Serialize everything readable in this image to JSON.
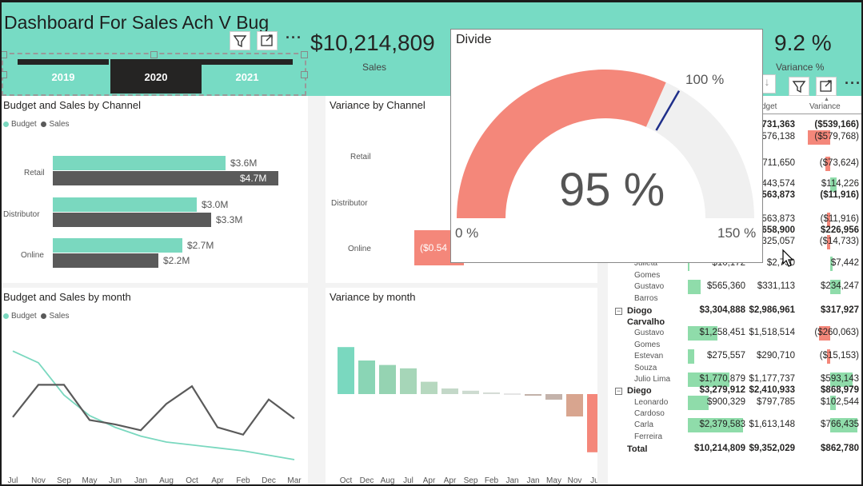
{
  "header": {
    "title": "Dashboard For Sales Ach V Bug",
    "kpi_sales_value": "$10,214,809",
    "kpi_sales_label": "Sales",
    "kpi_variance_value": "9.2 %",
    "kpi_variance_label": "Variance %",
    "more_label": "···",
    "colors": {
      "header_bg": "#77dbc4",
      "budget": "#7ad8bf",
      "sales": "#5a5a5a",
      "negative": "#f4877a",
      "positive": "#7fd49a"
    }
  },
  "slicer": {
    "years": [
      {
        "label": "2019",
        "selected": false
      },
      {
        "label": "2020",
        "selected": true
      },
      {
        "label": "2021",
        "selected": false
      }
    ]
  },
  "budget_sales_channel": {
    "title": "Budget and Sales by Channel",
    "legend": [
      "Budget",
      "Sales"
    ],
    "chart_data": {
      "type": "bar",
      "orientation": "horizontal",
      "categories": [
        "Retail",
        "Distributor",
        "Online"
      ],
      "series": [
        {
          "name": "Budget",
          "values": [
            3.6,
            3.0,
            2.7
          ]
        },
        {
          "name": "Sales",
          "values": [
            4.7,
            3.3,
            2.2
          ]
        }
      ],
      "labels": {
        "Budget": [
          "$3.6M",
          "$3.0M",
          "$2.7M"
        ],
        "Sales": [
          "$4.7M",
          "$3.3M",
          "$2.2M"
        ]
      },
      "xlim": [
        0,
        5.0
      ]
    }
  },
  "variance_channel": {
    "title": "Variance by Channel",
    "chart_data": {
      "type": "bar",
      "orientation": "horizontal",
      "categories": [
        "Retail",
        "Distributor",
        "Online"
      ],
      "visible_labels": [
        "",
        "",
        "($0.54"
      ]
    }
  },
  "budget_sales_month": {
    "title": "Budget and Sales by month",
    "legend": [
      "Budget",
      "Sales"
    ],
    "chart_data": {
      "type": "line",
      "x": [
        "Jul",
        "Nov",
        "Sep",
        "May",
        "Jun",
        "Jan",
        "Aug",
        "Oct",
        "Apr",
        "Feb",
        "Dec",
        "Mar"
      ],
      "series": [
        {
          "name": "Budget",
          "values": [
            1000,
            920,
            700,
            560,
            480,
            420,
            380,
            360,
            340,
            320,
            290,
            260
          ]
        },
        {
          "name": "Sales",
          "values": [
            550,
            770,
            770,
            530,
            500,
            460,
            640,
            760,
            480,
            430,
            670,
            540
          ]
        }
      ],
      "ylim": [
        200,
        1050
      ]
    }
  },
  "variance_month": {
    "title": "Variance by month",
    "chart_data": {
      "type": "bar",
      "categories": [
        "Oct",
        "Dec",
        "Aug",
        "Jul",
        "Apr",
        "Apr",
        "Sep",
        "Feb",
        "Jan",
        "Jan",
        "May",
        "Nov",
        "Jul"
      ],
      "values": [
        420,
        300,
        260,
        230,
        110,
        50,
        30,
        15,
        5,
        -15,
        -50,
        -200,
        -520
      ],
      "ylim": [
        -550,
        450
      ]
    }
  },
  "gauge": {
    "title": "Divide",
    "value_label": "95 %",
    "min_label": "0 %",
    "max_label": "150 %",
    "target_label": "100 %",
    "value": 95,
    "min": 0,
    "max": 150,
    "target": 100
  },
  "matrix": {
    "headers": [
      "dget",
      "Variance"
    ],
    "rows": [
      {
        "name": "",
        "budget": ",731,363",
        "variance": "($539,166)",
        "bold": true
      },
      {
        "name": "",
        "budget": ",576,138",
        "variance": "($579,768)",
        "bold": false
      },
      {
        "name": "",
        "budget": "$711,650",
        "variance": "($73,624)",
        "bold": false
      },
      {
        "name": "",
        "budget": "$443,574",
        "variance": "$114,226",
        "bold": false
      },
      {
        "name": "",
        "budget": "$563,873",
        "variance": "($11,916)",
        "bold": true
      },
      {
        "name": "",
        "budget": "$563,873",
        "variance": "($11,916)",
        "bold": false
      },
      {
        "name": "",
        "budget": "$658,900",
        "variance": "$226,956",
        "bold": true
      },
      {
        "name": "",
        "budget": "325,057",
        "variance": "($14,733)",
        "bold": false
      },
      {
        "name": "Julieta",
        "sales": "$10,172",
        "budget": "$2,730",
        "variance": "$7,442",
        "bold": false
      },
      {
        "name": "Gomes",
        "sales": "",
        "budget": "",
        "variance": "",
        "bold": false
      },
      {
        "name": "Gustavo",
        "sales": "$565,360",
        "budget": "$331,113",
        "variance": "$234,247",
        "bold": false
      },
      {
        "name": "Barros",
        "sales": "",
        "budget": "",
        "variance": "",
        "bold": false
      },
      {
        "name": "Diogo",
        "sales": "$3,304,888",
        "budget": "$2,986,961",
        "variance": "$317,927",
        "bold": true,
        "expander": "⊟"
      },
      {
        "name": "Carvalho",
        "sales": "",
        "budget": "",
        "variance": "",
        "bold": true
      },
      {
        "name": "Gustavo",
        "sales": "$1,258,451",
        "budget": "$1,518,514",
        "variance": "($260,063)",
        "bold": false
      },
      {
        "name": "Gomes",
        "sales": "",
        "budget": "",
        "variance": "",
        "bold": false
      },
      {
        "name": "Estevan",
        "sales": "$275,557",
        "budget": "$290,710",
        "variance": "($15,153)",
        "bold": false
      },
      {
        "name": "Souza",
        "sales": "",
        "budget": "",
        "variance": "",
        "bold": false
      },
      {
        "name": "Julio Lima",
        "sales": "$1,770,879",
        "budget": "$1,177,737",
        "variance": "$593,143",
        "bold": false
      },
      {
        "name": "Diego",
        "sales": "$3,279,912",
        "budget": "$2,410,933",
        "variance": "$868,979",
        "bold": true,
        "expander": "⊟"
      },
      {
        "name": "Leonardo",
        "sales": "$900,329",
        "budget": "$797,785",
        "variance": "$102,544",
        "bold": false
      },
      {
        "name": "Cardoso",
        "sales": "",
        "budget": "",
        "variance": "",
        "bold": false
      },
      {
        "name": "Carla",
        "sales": "$2,379,583",
        "budget": "$1,613,148",
        "variance": "$766,435",
        "bold": false
      },
      {
        "name": "Ferreira",
        "sales": "",
        "budget": "",
        "variance": "",
        "bold": false
      },
      {
        "name": "Total",
        "sales": "$10,214,809",
        "budget": "$9,352,029",
        "variance": "$862,780",
        "bold": true
      }
    ]
  }
}
